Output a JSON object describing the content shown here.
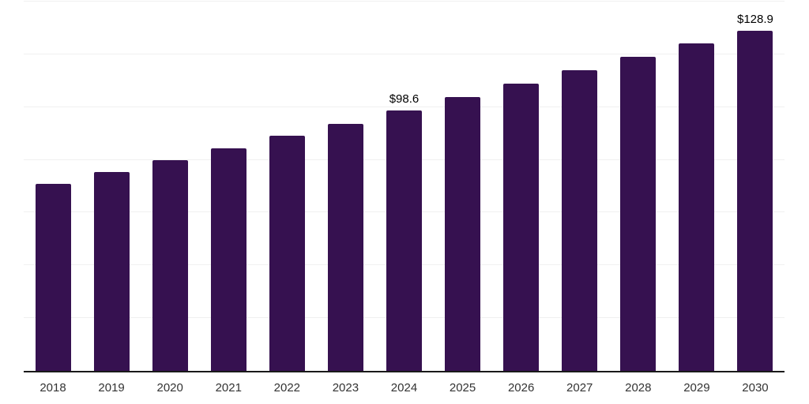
{
  "chart": {
    "background_color": "#ffffff",
    "bar_color": "#361150",
    "gridline_color": "#f0f0f0",
    "axis_line_color": "#1a1a1a",
    "tick_label_color": "#333333",
    "value_label_color": "#000000"
  },
  "chart_data": {
    "type": "bar",
    "categories": [
      "2018",
      "2019",
      "2020",
      "2021",
      "2022",
      "2023",
      "2024",
      "2025",
      "2026",
      "2027",
      "2028",
      "2029",
      "2030"
    ],
    "values": [
      71.0,
      75.3,
      79.9,
      84.3,
      89.2,
      93.7,
      98.6,
      103.7,
      108.9,
      114.0,
      119.1,
      124.2,
      128.9
    ],
    "annotations": [
      {
        "category": "2024",
        "text": "$98.6"
      },
      {
        "category": "2030",
        "text": "$128.9"
      }
    ],
    "xlabel": "",
    "ylabel": "",
    "ylim": [
      0,
      140
    ],
    "gridline_step": 20,
    "grid": true,
    "legend": false,
    "x_tick_labels": [
      "2018",
      "2019",
      "2020",
      "2021",
      "2022",
      "2023",
      "2024",
      "2025",
      "2026",
      "2027",
      "2028",
      "2029",
      "2030"
    ],
    "y_tick_labels": []
  }
}
